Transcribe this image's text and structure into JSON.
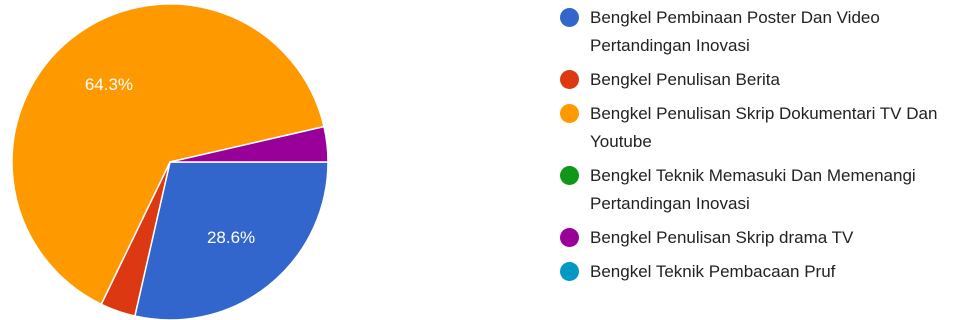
{
  "chart_data": {
    "type": "pie",
    "legend_position": "right",
    "slices": [
      {
        "label": "Bengkel Pembinaan Poster Dan Video Pertandingan Inovasi",
        "value": 28.6,
        "display": "28.6%",
        "color": "#3366cc"
      },
      {
        "label": "Bengkel Penulisan Berita",
        "value": 3.6,
        "display": "",
        "color": "#dc3912"
      },
      {
        "label": "Bengkel Penulisan Skrip Dokumentari TV Dan Youtube",
        "value": 64.3,
        "display": "64.3%",
        "color": "#ff9900"
      },
      {
        "label": "Bengkel Teknik Memasuki Dan Memenangi Pertandingan Inovasi",
        "value": 0,
        "display": "",
        "color": "#109618"
      },
      {
        "label": "Bengkel Penulisan Skrip drama TV",
        "value": 3.6,
        "display": "",
        "color": "#990099"
      },
      {
        "label": "Bengkel Teknik Pembacaan Pruf",
        "value": 0,
        "display": "",
        "color": "#0099c6"
      }
    ]
  }
}
